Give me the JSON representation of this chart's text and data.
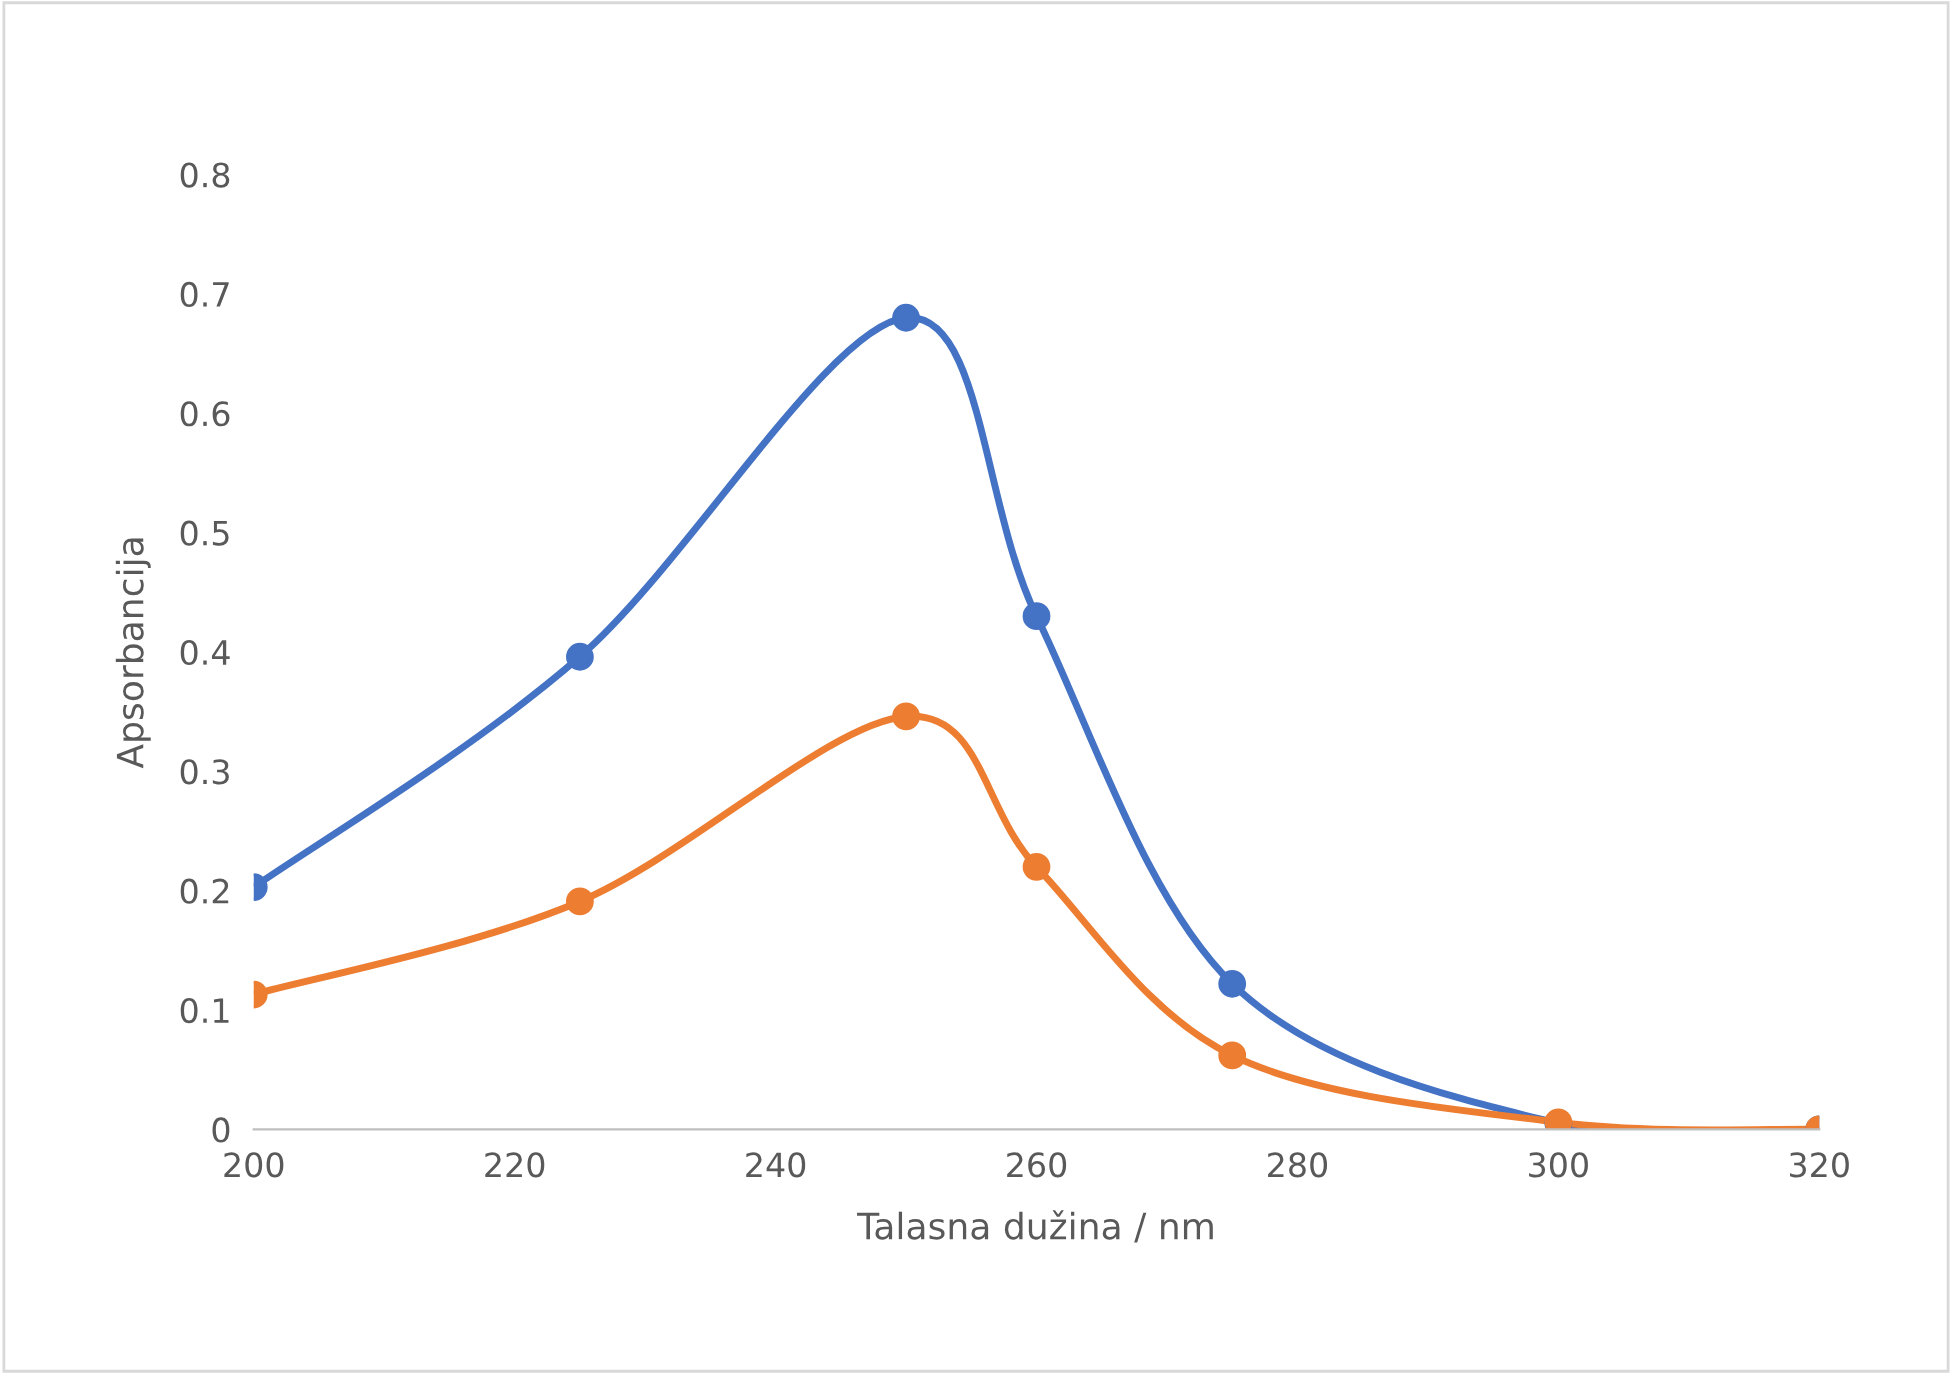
{
  "chart_data": {
    "type": "line",
    "xlabel": "Talasna dužina / nm",
    "ylabel": "Apsorbancija",
    "x": [
      200,
      225,
      250,
      260,
      275,
      300,
      320
    ],
    "series": [
      {
        "color": "#4472c4",
        "values": [
          0.203,
          0.396,
          0.68,
          0.43,
          0.122,
          0.005,
          0
        ]
      },
      {
        "color": "#ed7d31",
        "values": [
          0.113,
          0.191,
          0.346,
          0.22,
          0.062,
          0.006,
          0
        ]
      }
    ],
    "xlim": [
      200,
      320
    ],
    "xticks": [
      200,
      220,
      240,
      260,
      280,
      300,
      320
    ],
    "ylim": [
      0,
      0.8
    ],
    "yticks": [
      0,
      0.1,
      0.2,
      0.3,
      0.4,
      0.5,
      0.6,
      0.7,
      0.8
    ],
    "grid": false,
    "legend": false,
    "marker": "circle",
    "line_style": "solid"
  }
}
